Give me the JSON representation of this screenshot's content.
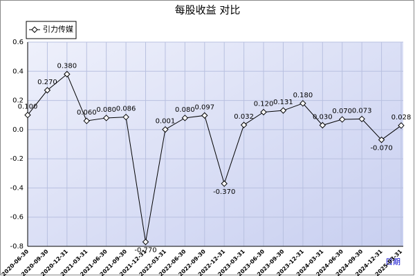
{
  "chart_data": {
    "type": "line",
    "title": "每股收益 对比",
    "x_label": "日期",
    "categories": [
      "2020-06-30",
      "2020-09-30",
      "2020-12-31",
      "2021-03-31",
      "2021-06-30",
      "2021-09-30",
      "2021-12-31",
      "2022-03-31",
      "2022-06-30",
      "2022-09-30",
      "2022-12-31",
      "2023-03-31",
      "2023-06-30",
      "2023-09-30",
      "2023-12-31",
      "2024-03-31",
      "2024-06-30",
      "2024-09-30",
      "2024-12-31",
      "2025-03-31"
    ],
    "series": [
      {
        "name": "引力传媒",
        "color": "#000000",
        "values": [
          0.1,
          0.27,
          0.38,
          0.06,
          0.08,
          0.086,
          -0.77,
          0.001,
          0.08,
          0.097,
          -0.37,
          0.032,
          0.12,
          0.131,
          0.18,
          0.03,
          0.07,
          0.073,
          -0.07,
          0.028
        ],
        "value_labels": [
          "0.100",
          "0.270",
          "0.380",
          "0.060",
          "0.080",
          "0.086",
          "-0.770",
          "0.001",
          "0.080",
          "0.097",
          "-0.370",
          "0.032",
          "0.120",
          "0.131",
          "0.180",
          "0.030",
          "0.070",
          "0.073",
          "-0.070",
          "0.028"
        ]
      }
    ],
    "ylim": [
      -0.8,
      0.6
    ],
    "yticks": [
      -0.8,
      -0.6,
      -0.4,
      -0.2,
      {
        "value": 0,
        "label": "0.0"
      },
      0.2,
      0.4,
      0.6
    ],
    "grid": true,
    "legend": "top-left"
  }
}
